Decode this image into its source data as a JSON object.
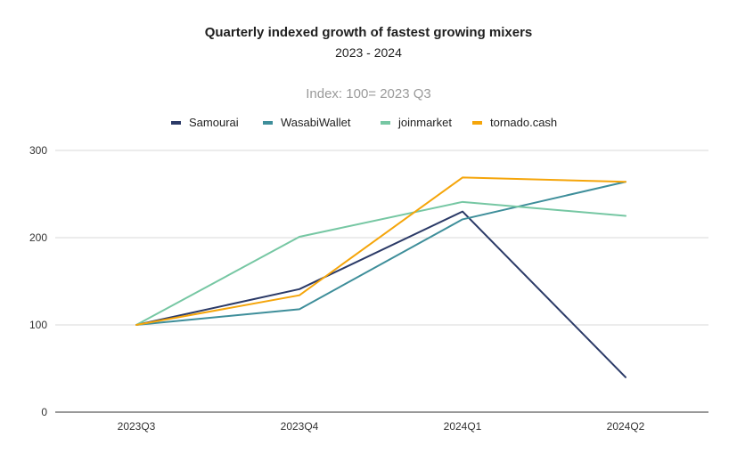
{
  "chart_data": {
    "type": "line",
    "title": "Quarterly indexed growth of fastest growing mixers",
    "subtitle": "2023 - 2024",
    "annotation": "Index: 100= 2023 Q3",
    "xlabel": "",
    "ylabel": "",
    "categories": [
      "2023Q3",
      "2023Q4",
      "2024Q1",
      "2024Q2"
    ],
    "ylim": [
      0,
      300
    ],
    "yticks": [
      0,
      100,
      200,
      300
    ],
    "grid": true,
    "legend_position": "top",
    "series": [
      {
        "name": "Samourai",
        "color": "#2b3a67",
        "values": [
          100,
          141,
          230,
          40
        ]
      },
      {
        "name": "WasabiWallet",
        "color": "#3e8e9a",
        "values": [
          100,
          118,
          221,
          264
        ]
      },
      {
        "name": "joinmarket",
        "color": "#76c7a3",
        "values": [
          100,
          201,
          241,
          225
        ]
      },
      {
        "name": "tornado.cash",
        "color": "#f5a50a",
        "values": [
          100,
          134,
          269,
          264
        ]
      }
    ]
  }
}
